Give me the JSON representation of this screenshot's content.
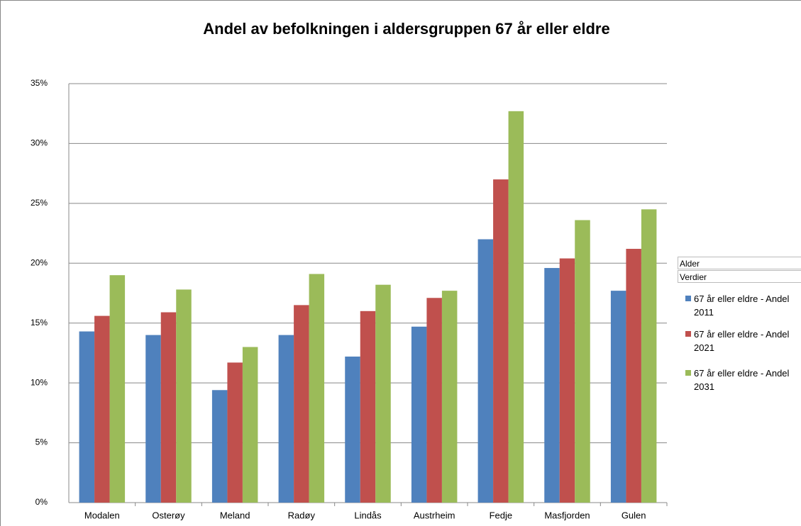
{
  "chart_data": {
    "type": "bar",
    "title": "Andel av befolkningen i aldersgruppen 67 år eller eldre",
    "categories": [
      "Modalen",
      "Osterøy",
      "Meland",
      "Radøy",
      "Lindås",
      "Austrheim",
      "Fedje",
      "Masfjorden",
      "Gulen"
    ],
    "series": [
      {
        "name": "67 år eller eldre - Andel 2011",
        "color": "#4f81bd",
        "values": [
          14.3,
          14.0,
          9.4,
          14.0,
          12.2,
          14.7,
          22.0,
          19.6,
          17.7
        ]
      },
      {
        "name": "67 år eller eldre - Andel 2021",
        "color": "#c0504d",
        "values": [
          15.6,
          15.9,
          11.7,
          16.5,
          16.0,
          17.1,
          27.0,
          20.4,
          21.2
        ]
      },
      {
        "name": "67 år eller eldre -  Andel 2031",
        "color": "#9bbb59",
        "values": [
          19.0,
          17.8,
          13.0,
          19.1,
          18.2,
          17.7,
          32.7,
          23.6,
          24.5
        ]
      }
    ],
    "ylim": [
      0,
      35
    ],
    "yticks": [
      {
        "value": 0,
        "label": "0%"
      },
      {
        "value": 5,
        "label": "5%"
      },
      {
        "value": 10,
        "label": "10%"
      },
      {
        "value": 15,
        "label": "15%"
      },
      {
        "value": 20,
        "label": "20%"
      },
      {
        "value": 25,
        "label": "25%"
      },
      {
        "value": 30,
        "label": "30%"
      },
      {
        "value": 35,
        "label": "35%"
      }
    ],
    "grid": true,
    "legend_position": "right",
    "legend_fields": [
      "Alder",
      "Verdier"
    ]
  }
}
